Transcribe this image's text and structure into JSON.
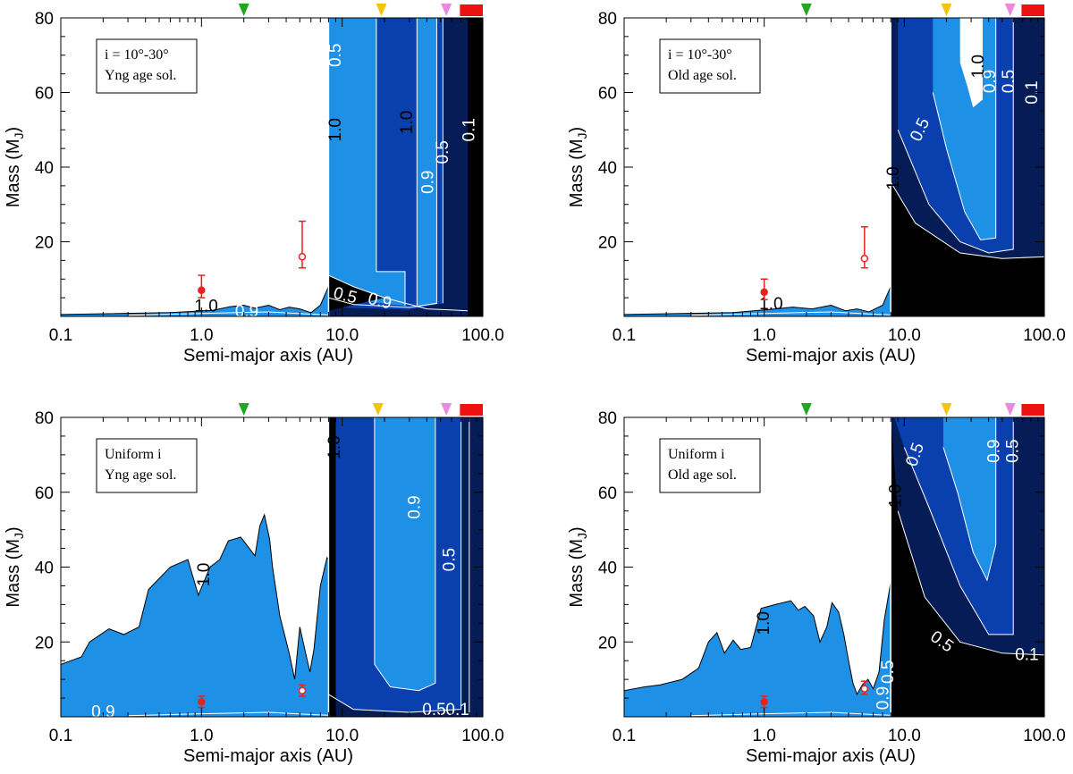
{
  "figure": {
    "type": "contour",
    "colors": {
      "light_blue": "#1e90e6",
      "mid_blue": "#0a3fae",
      "dark_navy": "#061c57",
      "black": "#000000",
      "contour_line": "#ffffff",
      "measurement": "#e8221f",
      "marker_green": "#21a820",
      "marker_yellow": "#f2c40c",
      "marker_violet": "#e98ae0",
      "marker_red_bar": "#ee1111"
    }
  },
  "chart_data": [
    {
      "type": "contour",
      "panel": "top-left",
      "legend": [
        "i = 10°-30°",
        "Yng age sol."
      ],
      "xlabel": "Semi-major axis (AU)",
      "ylabel": "Mass (M",
      "ylabel_sub": "J",
      "ylabel_close": ")",
      "xscale": "log",
      "xlim": [
        0.1,
        100
      ],
      "ylim": [
        0,
        80
      ],
      "xticks": [
        "0.1",
        "1.0",
        "10.0",
        "100.0"
      ],
      "yticks": [
        "20",
        "40",
        "60",
        "80"
      ],
      "contour_labels": [
        "1.0",
        "0.9",
        "1.0",
        "0.5",
        "0.9",
        "0.5",
        "0.1",
        "1.0",
        "0.9",
        "0.5"
      ],
      "points": [
        {
          "a": 1.0,
          "mass": 7,
          "err_low": 5,
          "err_high": 11,
          "filled": true
        },
        {
          "a": 5.2,
          "mass": 16,
          "err_low": 13,
          "err_high": 25.5,
          "filled": false
        }
      ],
      "top_markers": [
        {
          "a": 2.0,
          "color": "green"
        },
        {
          "a": 19,
          "color": "yellow"
        },
        {
          "a": 55,
          "color": "violet"
        }
      ]
    },
    {
      "type": "contour",
      "panel": "top-right",
      "legend": [
        "i = 10°-30°",
        "Old age sol."
      ],
      "xlabel": "Semi-major axis (AU)",
      "ylabel": "Mass (M",
      "ylabel_sub": "J",
      "ylabel_close": ")",
      "xscale": "log",
      "xlim": [
        0.1,
        100
      ],
      "ylim": [
        0,
        80
      ],
      "xticks": [
        "0.1",
        "1.0",
        "10.0",
        "100.0"
      ],
      "yticks": [
        "20",
        "40",
        "60",
        "80"
      ],
      "contour_labels": [
        "1.0",
        "1.0",
        "0.9",
        "0.5",
        "0.1",
        "0.5",
        "1.0"
      ],
      "points": [
        {
          "a": 1.0,
          "mass": 6.5,
          "err_low": 4.5,
          "err_high": 10,
          "filled": true
        },
        {
          "a": 5.2,
          "mass": 15.5,
          "err_low": 13,
          "err_high": 24,
          "filled": false
        }
      ],
      "top_markers": [
        {
          "a": 2.0,
          "color": "green"
        },
        {
          "a": 20,
          "color": "yellow"
        },
        {
          "a": 57,
          "color": "violet"
        }
      ]
    },
    {
      "type": "contour",
      "panel": "bottom-left",
      "legend": [
        "Uniform i",
        "Yng age sol."
      ],
      "xlabel": "Semi-major axis (AU)",
      "ylabel": "Mass (M",
      "ylabel_sub": "J",
      "ylabel_close": ")",
      "xscale": "log",
      "xlim": [
        0.1,
        100
      ],
      "ylim": [
        0,
        80
      ],
      "xticks": [
        "0.1",
        "1.0",
        "10.0",
        "100.0"
      ],
      "yticks": [
        "20",
        "40",
        "60",
        "80"
      ],
      "contour_labels": [
        "1.0",
        "1.0",
        "0.9",
        "0.5",
        "0.9",
        "0.5",
        "0.1"
      ],
      "points": [
        {
          "a": 1.0,
          "mass": 4,
          "err_low": 2.5,
          "err_high": 5.5,
          "filled": true
        },
        {
          "a": 5.2,
          "mass": 7,
          "err_low": 5.5,
          "err_high": 8.5,
          "filled": false
        }
      ],
      "top_markers": [
        {
          "a": 2.0,
          "color": "green"
        },
        {
          "a": 18,
          "color": "yellow"
        },
        {
          "a": 55,
          "color": "violet"
        }
      ]
    },
    {
      "type": "contour",
      "panel": "bottom-right",
      "legend": [
        "Uniform i",
        "Old age sol."
      ],
      "xlabel": "Semi-major axis (AU)",
      "ylabel": "Mass (M",
      "ylabel_sub": "J",
      "ylabel_close": ")",
      "xscale": "log",
      "xlim": [
        0.1,
        100
      ],
      "ylim": [
        0,
        80
      ],
      "xticks": [
        "0.1",
        "1.0",
        "10.0",
        "100.0"
      ],
      "yticks": [
        "20",
        "40",
        "60",
        "80"
      ],
      "contour_labels": [
        "1.0",
        "0.5",
        "0.9",
        "0.5",
        "0.5",
        "0.1",
        "1.0",
        "0.9",
        "0.5"
      ],
      "points": [
        {
          "a": 1.0,
          "mass": 4,
          "err_low": 2.5,
          "err_high": 5.5,
          "filled": true
        },
        {
          "a": 5.2,
          "mass": 7.5,
          "err_low": 6,
          "err_high": 9.5,
          "filled": false
        }
      ],
      "top_markers": [
        {
          "a": 2.0,
          "color": "green"
        },
        {
          "a": 20,
          "color": "yellow"
        },
        {
          "a": 57,
          "color": "violet"
        }
      ]
    }
  ]
}
